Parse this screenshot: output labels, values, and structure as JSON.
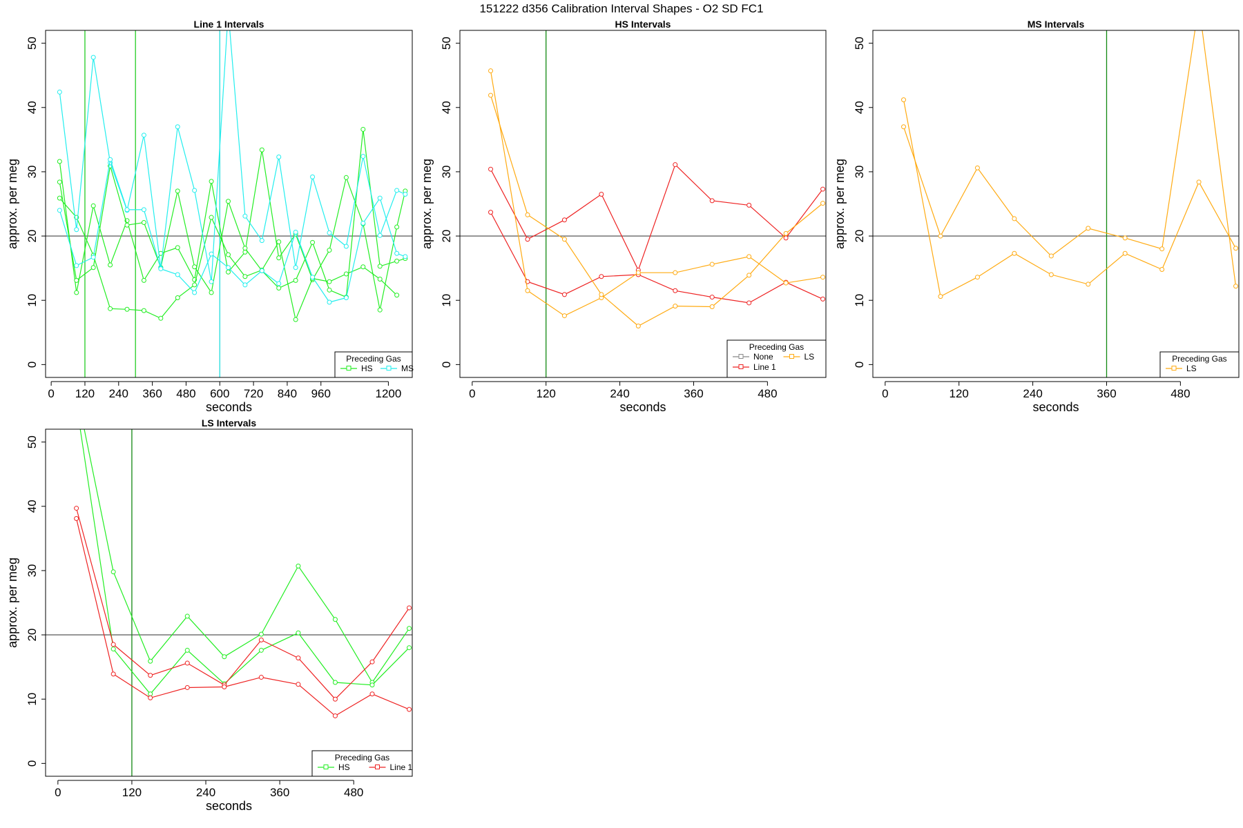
{
  "title": "151222   d356   Calibration Interval Shapes - O2 SD FC1",
  "colors": {
    "HS": "#22ee22",
    "MS": "#22eeee",
    "Line 1": "#ee2222",
    "LS": "#ffaa11",
    "None": "#888888",
    "reference_line": "#444444",
    "marker_line": "#118811"
  },
  "chart_data": [
    {
      "type": "line",
      "title": "Line 1 Intervals",
      "xlabel": "seconds",
      "ylabel": "approx. per meg",
      "xlim": [
        -20,
        1285
      ],
      "ylim": [
        -2,
        52
      ],
      "xticks": [
        0,
        120,
        240,
        360,
        480,
        600,
        720,
        840,
        960,
        1200
      ],
      "yticks": [
        0,
        10,
        20,
        30,
        40,
        50
      ],
      "hline": 20,
      "vlines": [
        {
          "x": 120,
          "color": "#22cc22"
        },
        {
          "x": 300,
          "color": "#22cc22"
        },
        {
          "x": 600,
          "color": "#22dddd"
        }
      ],
      "legend": {
        "title": "Preceding Gas",
        "items": [
          "HS",
          "MS"
        ]
      },
      "series": [
        {
          "name": "HS",
          "color": "#22ee22",
          "x": [
            30,
            90,
            150,
            210,
            270,
            330,
            390,
            450,
            510,
            570,
            630,
            690,
            750,
            810,
            870,
            930,
            990,
            1050,
            1110,
            1170,
            1230,
            1260
          ],
          "y": [
            31.6,
            11.2,
            24.7,
            15.5,
            22.4,
            13.1,
            17.3,
            18.2,
            13.2,
            28.5,
            14.4,
            17.5,
            33.4,
            16.6,
            20.3,
            13.2,
            17.8,
            29.1,
            21.9,
            8.5,
            21.4,
            27.0
          ]
        },
        {
          "name": "HS",
          "color": "#22ee22",
          "x": [
            30,
            90,
            150,
            210,
            270,
            330,
            390,
            450,
            510,
            570,
            630,
            690,
            750,
            810,
            870,
            930,
            990,
            1050,
            1110,
            1170,
            1230,
            1260
          ],
          "y": [
            28.4,
            13.1,
            15.1,
            30.9,
            21.7,
            22.1,
            15.1,
            27.0,
            15.2,
            11.2,
            25.4,
            18.1,
            14.6,
            11.9,
            13.1,
            19.0,
            11.6,
            10.5,
            36.6,
            15.3,
            16.1,
            16.5
          ]
        },
        {
          "name": "HS",
          "color": "#22ee22",
          "x": [
            30,
            90,
            150,
            210,
            270,
            330,
            390,
            450,
            510,
            570,
            630,
            690,
            750,
            810,
            870,
            930,
            990,
            1050,
            1110,
            1170,
            1230
          ],
          "y": [
            25.9,
            22.9,
            17.0,
            8.7,
            8.6,
            8.4,
            7.2,
            10.4,
            12.4,
            22.9,
            17.1,
            13.7,
            14.7,
            19.1,
            7.0,
            13.4,
            12.9,
            14.1,
            15.2,
            13.3,
            10.8
          ]
        },
        {
          "name": "MS",
          "color": "#22eeee",
          "x": [
            30,
            90,
            150,
            210,
            270,
            330,
            390,
            450,
            510,
            570,
            630,
            690,
            750,
            810,
            870,
            930,
            990,
            1050,
            1110,
            1170,
            1230,
            1260
          ],
          "y": [
            42.4,
            21.0,
            47.8,
            31.4,
            24.0,
            35.7,
            15.0,
            37.0,
            27.1,
            12.9,
            55.0,
            23.1,
            19.3,
            32.3,
            15.1,
            29.2,
            20.5,
            18.4,
            32.4,
            20.1,
            27.1,
            26.5
          ]
        },
        {
          "name": "MS",
          "color": "#22eeee",
          "x": [
            30,
            90,
            150,
            210,
            270,
            330,
            390,
            450,
            510,
            570,
            630,
            690,
            750,
            810,
            870,
            930,
            990,
            1050,
            1110,
            1170,
            1230,
            1260
          ],
          "y": [
            24.0,
            15.4,
            16.7,
            31.9,
            24.1,
            24.1,
            14.9,
            14.0,
            11.2,
            17.2,
            15.1,
            12.4,
            14.6,
            12.6,
            20.6,
            13.6,
            9.7,
            10.4,
            22.0,
            25.9,
            17.3,
            16.8
          ]
        }
      ]
    },
    {
      "type": "line",
      "title": "HS Intervals",
      "xlabel": "seconds",
      "ylabel": "approx. per meg",
      "xlim": [
        -20,
        575
      ],
      "ylim": [
        -2,
        52
      ],
      "xticks": [
        0,
        120,
        240,
        360,
        480
      ],
      "yticks": [
        0,
        10,
        20,
        30,
        40,
        50
      ],
      "hline": 20,
      "vlines": [
        {
          "x": 120,
          "color": "#118811"
        }
      ],
      "legend": {
        "title": "Preceding Gas",
        "items": [
          "None",
          "LS",
          "Line 1"
        ]
      },
      "series": [
        {
          "name": "Line 1",
          "color": "#ee2222",
          "x": [
            30,
            90,
            150,
            210,
            270,
            330,
            390,
            450,
            510,
            570
          ],
          "y": [
            30.4,
            19.5,
            22.5,
            26.5,
            14.7,
            31.1,
            25.5,
            24.8,
            19.7,
            27.3
          ]
        },
        {
          "name": "Line 1",
          "color": "#ee2222",
          "x": [
            30,
            90,
            150,
            210,
            270,
            330,
            390,
            450,
            510,
            570
          ],
          "y": [
            23.7,
            12.9,
            10.9,
            13.7,
            14.0,
            11.5,
            10.5,
            9.6,
            12.8,
            10.2
          ]
        },
        {
          "name": "LS",
          "color": "#ffaa11",
          "x": [
            30,
            90,
            150,
            210,
            270,
            330,
            390,
            450,
            510,
            570
          ],
          "y": [
            45.7,
            11.5,
            7.6,
            10.4,
            14.3,
            14.3,
            15.6,
            16.8,
            12.7,
            13.6
          ]
        },
        {
          "name": "LS",
          "color": "#ffaa11",
          "x": [
            30,
            90,
            150,
            210,
            270,
            330,
            390,
            450,
            510,
            570
          ],
          "y": [
            41.9,
            23.3,
            19.5,
            10.9,
            6.0,
            9.1,
            9.0,
            13.9,
            20.4,
            25.1
          ]
        }
      ]
    },
    {
      "type": "line",
      "title": "MS Intervals",
      "xlabel": "seconds",
      "ylabel": "approx. per meg",
      "xlim": [
        -20,
        575
      ],
      "ylim": [
        -2,
        52
      ],
      "xticks": [
        0,
        120,
        240,
        360,
        480
      ],
      "yticks": [
        0,
        10,
        20,
        30,
        40,
        50
      ],
      "hline": 20,
      "vlines": [
        {
          "x": 360,
          "color": "#118811"
        }
      ],
      "legend": {
        "title": "Preceding Gas",
        "items": [
          "LS"
        ]
      },
      "series": [
        {
          "name": "LS",
          "color": "#ffaa11",
          "x": [
            30,
            90,
            150,
            210,
            270,
            330,
            390,
            450,
            510,
            570
          ],
          "y": [
            41.2,
            10.6,
            13.6,
            17.3,
            14.0,
            12.5,
            17.3,
            14.8,
            28.4,
            18.1
          ]
        },
        {
          "name": "LS",
          "color": "#ffaa11",
          "x": [
            30,
            90,
            150,
            210,
            270,
            330,
            390,
            450,
            510,
            570
          ],
          "y": [
            37.0,
            20.0,
            30.6,
            22.7,
            16.9,
            21.2,
            19.7,
            18.0,
            56.0,
            12.2
          ]
        }
      ]
    },
    {
      "type": "line",
      "title": "LS Intervals",
      "xlabel": "seconds",
      "ylabel": "approx. per meg",
      "xlim": [
        -20,
        575
      ],
      "ylim": [
        -2,
        52
      ],
      "xticks": [
        0,
        120,
        240,
        360,
        480
      ],
      "yticks": [
        0,
        10,
        20,
        30,
        40,
        50
      ],
      "hline": 20,
      "vlines": [
        {
          "x": 120,
          "color": "#118811"
        }
      ],
      "legend": {
        "title": "Preceding Gas",
        "items": [
          "HS",
          "Line 1"
        ]
      },
      "series": [
        {
          "name": "HS",
          "color": "#22ee22",
          "x": [
            30,
            90,
            150,
            210,
            270,
            330,
            390,
            450,
            510,
            570
          ],
          "y": [
            58.0,
            29.8,
            15.9,
            22.9,
            16.6,
            20.1,
            30.7,
            22.4,
            12.6,
            21.0
          ]
        },
        {
          "name": "HS",
          "color": "#22ee22",
          "x": [
            30,
            90,
            150,
            210,
            270,
            330,
            390,
            450,
            510,
            570
          ],
          "y": [
            56.0,
            17.8,
            10.8,
            17.6,
            12.4,
            17.6,
            20.3,
            12.6,
            12.2,
            18.0
          ]
        },
        {
          "name": "Line 1",
          "color": "#ee2222",
          "x": [
            30,
            90,
            150,
            210,
            270,
            330,
            390,
            450,
            510,
            570
          ],
          "y": [
            39.7,
            18.5,
            13.7,
            15.6,
            12.2,
            19.2,
            16.4,
            10.0,
            15.8,
            24.2
          ]
        },
        {
          "name": "Line 1",
          "color": "#ee2222",
          "x": [
            30,
            90,
            150,
            210,
            270,
            330,
            390,
            450,
            510,
            570
          ],
          "y": [
            38.1,
            13.9,
            10.2,
            11.8,
            11.9,
            13.4,
            12.3,
            7.4,
            10.8,
            8.4
          ]
        }
      ]
    }
  ]
}
